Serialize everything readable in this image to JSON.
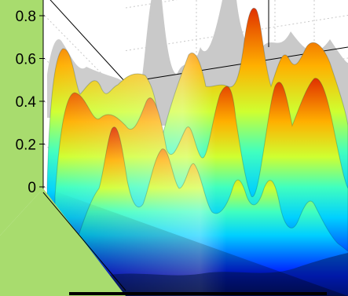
{
  "chart_data": {
    "type": "surface",
    "zlim": [
      0,
      0.85
    ],
    "z_ticks": [
      "0",
      "0.2",
      "0.4",
      "0.6",
      "0.8"
    ],
    "z_tick_values": [
      0,
      0.2,
      0.4,
      0.6,
      0.8
    ],
    "grid": true,
    "colormap": "jet",
    "shading": "interp",
    "lighting": "phong",
    "background_color": "#a8dc6e",
    "shadow_projection": "back wall (grey)"
  }
}
